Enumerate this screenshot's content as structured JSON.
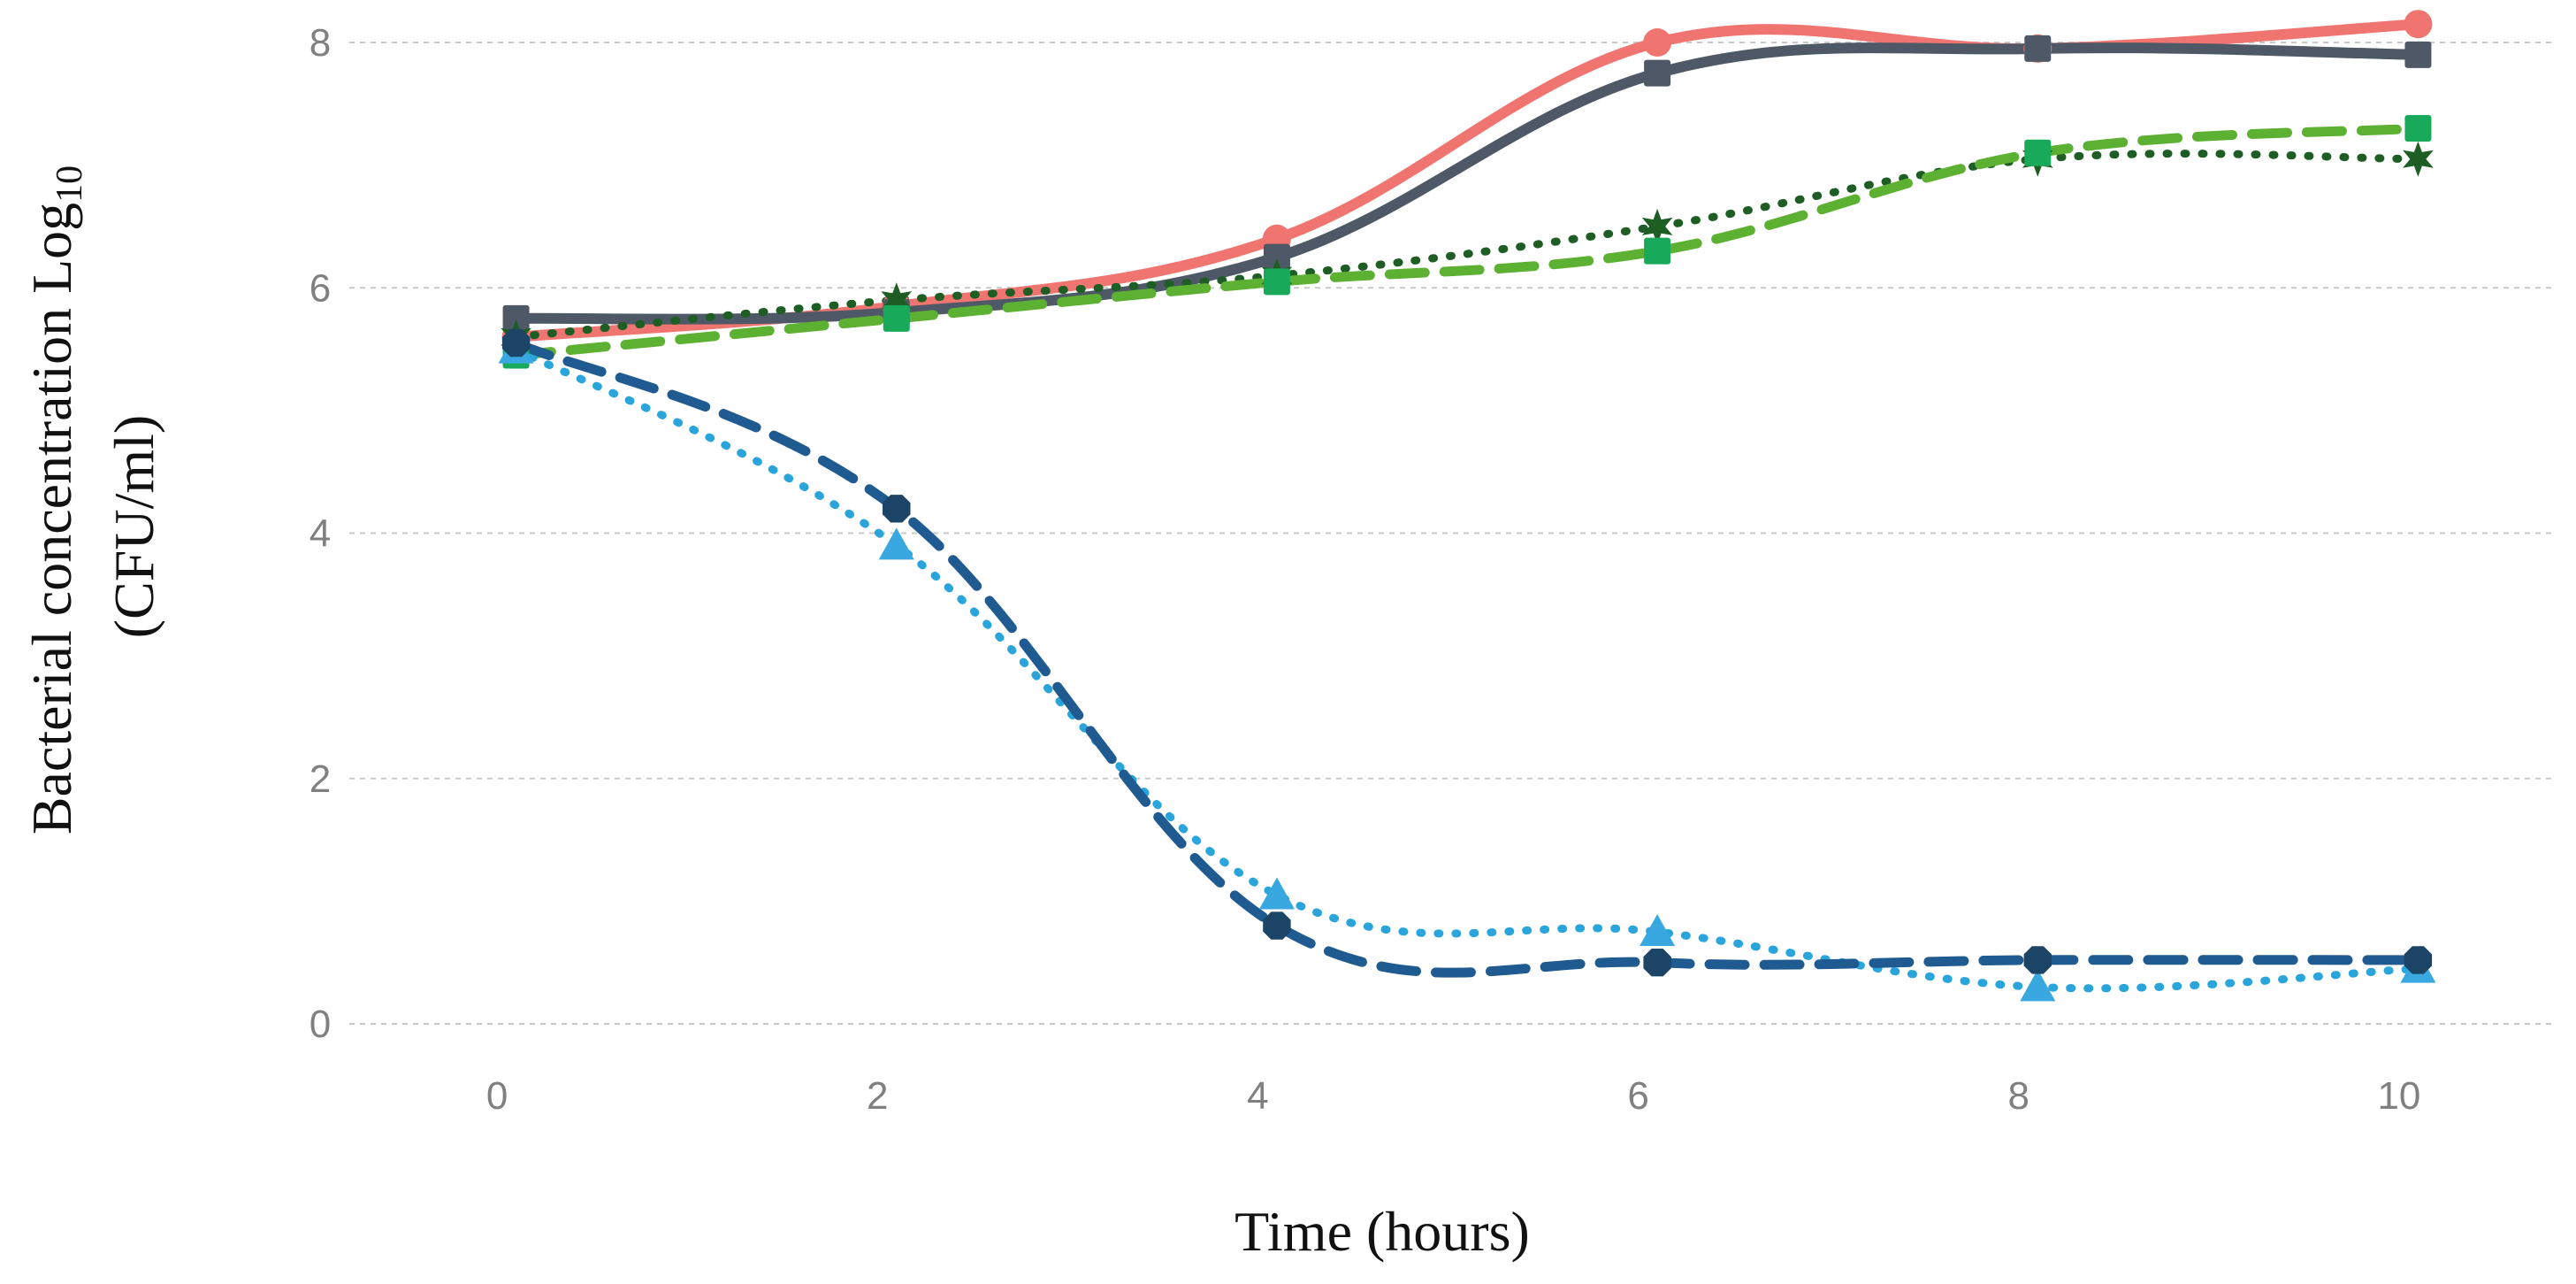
{
  "chart_data": {
    "type": "line",
    "title": "",
    "xlabel": "Time (hours)",
    "ylabel_line1": "Bacterial concentration Log",
    "ylabel_subscript": "10",
    "ylabel_line2": "(CFU/ml)",
    "x": [
      0,
      2,
      4,
      6,
      8,
      10
    ],
    "xlim": [
      -0.8,
      10.8
    ],
    "ylim": [
      0,
      8
    ],
    "xticks": [
      0,
      2,
      4,
      6,
      8,
      10
    ],
    "yticks": [
      0,
      2,
      4,
      6,
      8
    ],
    "grid": "horizontal dashed",
    "legend": "none",
    "series": [
      {
        "values": [
          5.6,
          5.85,
          6.4,
          8.0,
          7.95,
          8.15
        ],
        "color": "#f07570",
        "style": "solid",
        "marker": "circle"
      },
      {
        "values": [
          5.75,
          5.8,
          6.25,
          7.75,
          7.95,
          7.9
        ],
        "color": "#4e5866",
        "style": "solid",
        "marker": "square"
      },
      {
        "values": [
          5.6,
          5.9,
          6.1,
          6.5,
          7.05,
          7.05
        ],
        "color": "#1e5e24",
        "style": "dotted",
        "marker": "star"
      },
      {
        "values": [
          5.45,
          5.75,
          6.05,
          6.3,
          7.1,
          7.3
        ],
        "color": "#5cb032",
        "style": "dashed",
        "marker": "square-green"
      },
      {
        "values": [
          5.5,
          3.9,
          1.05,
          0.75,
          0.3,
          0.45
        ],
        "color": "#2aa5dc",
        "style": "dotted",
        "marker": "triangle"
      },
      {
        "values": [
          5.55,
          4.2,
          0.8,
          0.5,
          0.52,
          0.52
        ],
        "color": "#1f5a90",
        "style": "dashed",
        "marker": "octagon"
      }
    ]
  }
}
